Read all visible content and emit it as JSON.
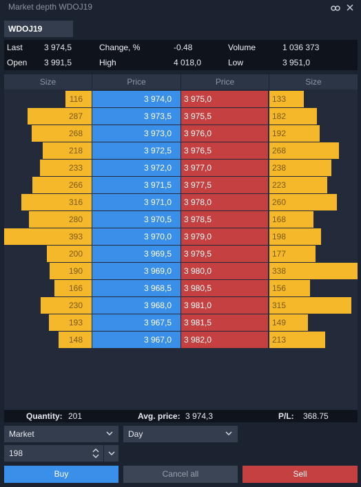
{
  "window": {
    "title": "Market depth WDOJ19"
  },
  "symbol": "WDOJ19",
  "quote": {
    "last_label": "Last",
    "last": "3 974,5",
    "change_label": "Change, %",
    "change": "-0.48",
    "volume_label": "Volume",
    "volume": "1 036 373",
    "open_label": "Open",
    "open": "3 991,5",
    "high_label": "High",
    "high": "4 018,0",
    "low_label": "Low",
    "low": "3 951,0"
  },
  "depth": {
    "headers": {
      "bid_size": "Size",
      "bid_price": "Price",
      "ask_price": "Price",
      "ask_size": "Size"
    },
    "rows": [
      {
        "bid_size": "116",
        "bid_price": "3 974,0",
        "ask_price": "3 975,0",
        "ask_size": "133"
      },
      {
        "bid_size": "287",
        "bid_price": "3 973,5",
        "ask_price": "3 975,5",
        "ask_size": "182"
      },
      {
        "bid_size": "268",
        "bid_price": "3 973,0",
        "ask_price": "3 976,0",
        "ask_size": "192"
      },
      {
        "bid_size": "218",
        "bid_price": "3 972,5",
        "ask_price": "3 976,5",
        "ask_size": "268"
      },
      {
        "bid_size": "233",
        "bid_price": "3 972,0",
        "ask_price": "3 977,0",
        "ask_size": "238"
      },
      {
        "bid_size": "266",
        "bid_price": "3 971,5",
        "ask_price": "3 977,5",
        "ask_size": "223"
      },
      {
        "bid_size": "316",
        "bid_price": "3 971,0",
        "ask_price": "3 978,0",
        "ask_size": "260"
      },
      {
        "bid_size": "280",
        "bid_price": "3 970,5",
        "ask_price": "3 978,5",
        "ask_size": "168"
      },
      {
        "bid_size": "393",
        "bid_price": "3 970,0",
        "ask_price": "3 979,0",
        "ask_size": "198"
      },
      {
        "bid_size": "200",
        "bid_price": "3 969,5",
        "ask_price": "3 979,5",
        "ask_size": "177"
      },
      {
        "bid_size": "190",
        "bid_price": "3 969,0",
        "ask_price": "3 980,0",
        "ask_size": "338"
      },
      {
        "bid_size": "166",
        "bid_price": "3 968,5",
        "ask_price": "3 980,5",
        "ask_size": "156"
      },
      {
        "bid_size": "230",
        "bid_price": "3 968,0",
        "ask_price": "3 981,0",
        "ask_size": "315"
      },
      {
        "bid_size": "193",
        "bid_price": "3 967,5",
        "ask_price": "3 981,5",
        "ask_size": "149"
      },
      {
        "bid_size": "148",
        "bid_price": "3 967,0",
        "ask_price": "3 982,0",
        "ask_size": "213"
      }
    ]
  },
  "summary": {
    "quantity_label": "Quantity:",
    "quantity": "201",
    "avg_price_label": "Avg. price:",
    "avg_price": "3 974,3",
    "pl_label": "P/L:",
    "pl": "368.75"
  },
  "order": {
    "type": "Market",
    "validity": "Day",
    "quantity": "198"
  },
  "buttons": {
    "buy": "Buy",
    "cancel_all": "Cancel all",
    "sell": "Sell"
  },
  "colors": {
    "bid": "#3a8fe8",
    "ask": "#c54040",
    "size_bar": "#f6b82b",
    "background": "#1b2230"
  },
  "icons": {
    "link": "link-icon",
    "close": "close-icon",
    "chevron": "chevron-down-icon",
    "stepper": "stepper-icon"
  }
}
